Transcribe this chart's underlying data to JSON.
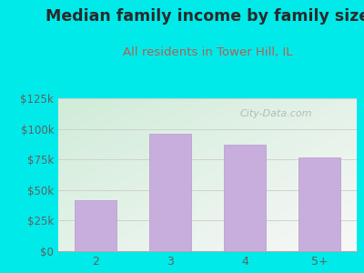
{
  "title": "Median family income by family size",
  "subtitle": "All residents in Tower Hill, IL",
  "categories": [
    "2",
    "3",
    "4",
    "5+"
  ],
  "values": [
    42000,
    96000,
    87000,
    77000
  ],
  "bar_color": "#c8aedd",
  "bar_edge_color": "#b898cc",
  "title_color": "#2a2a2a",
  "subtitle_color": "#b06050",
  "tick_color": "#606060",
  "background_color": "#00eaea",
  "plot_bg_top_left": "#d0ecd8",
  "plot_bg_bottom_right": "#f8f8f8",
  "ylim": [
    0,
    125000
  ],
  "yticks": [
    0,
    25000,
    50000,
    75000,
    100000,
    125000
  ],
  "ytick_labels": [
    "$0",
    "$25k",
    "$50k",
    "$75k",
    "$100k",
    "$125k"
  ],
  "watermark": "City-Data.com",
  "title_fontsize": 12.5,
  "subtitle_fontsize": 9.5
}
